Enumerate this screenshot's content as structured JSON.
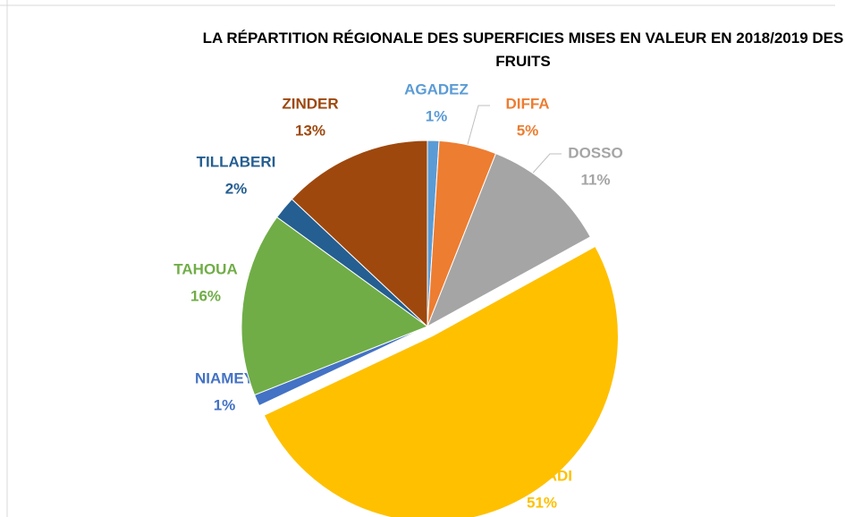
{
  "chart_data": {
    "type": "pie",
    "title": "LA RÉPARTITION RÉGIONALE DES SUPERFICIES MISES EN VALEUR EN 2018/2019 DES FRUITS",
    "categories": [
      "AGADEZ",
      "DIFFA",
      "DOSSO",
      "MARADI",
      "NIAMEY",
      "TAHOUA",
      "TILLABERI",
      "ZINDER"
    ],
    "values": [
      1,
      5,
      11,
      51,
      1,
      16,
      2,
      13
    ],
    "value_labels": [
      "1%",
      "5%",
      "11%",
      "51%",
      "1%",
      "16%",
      "2%",
      "13%"
    ],
    "colors": [
      "#5b9bd5",
      "#ed7d31",
      "#a5a5a5",
      "#ffc000",
      "#4472c4",
      "#70ad47",
      "#255e91",
      "#9e480e"
    ]
  }
}
